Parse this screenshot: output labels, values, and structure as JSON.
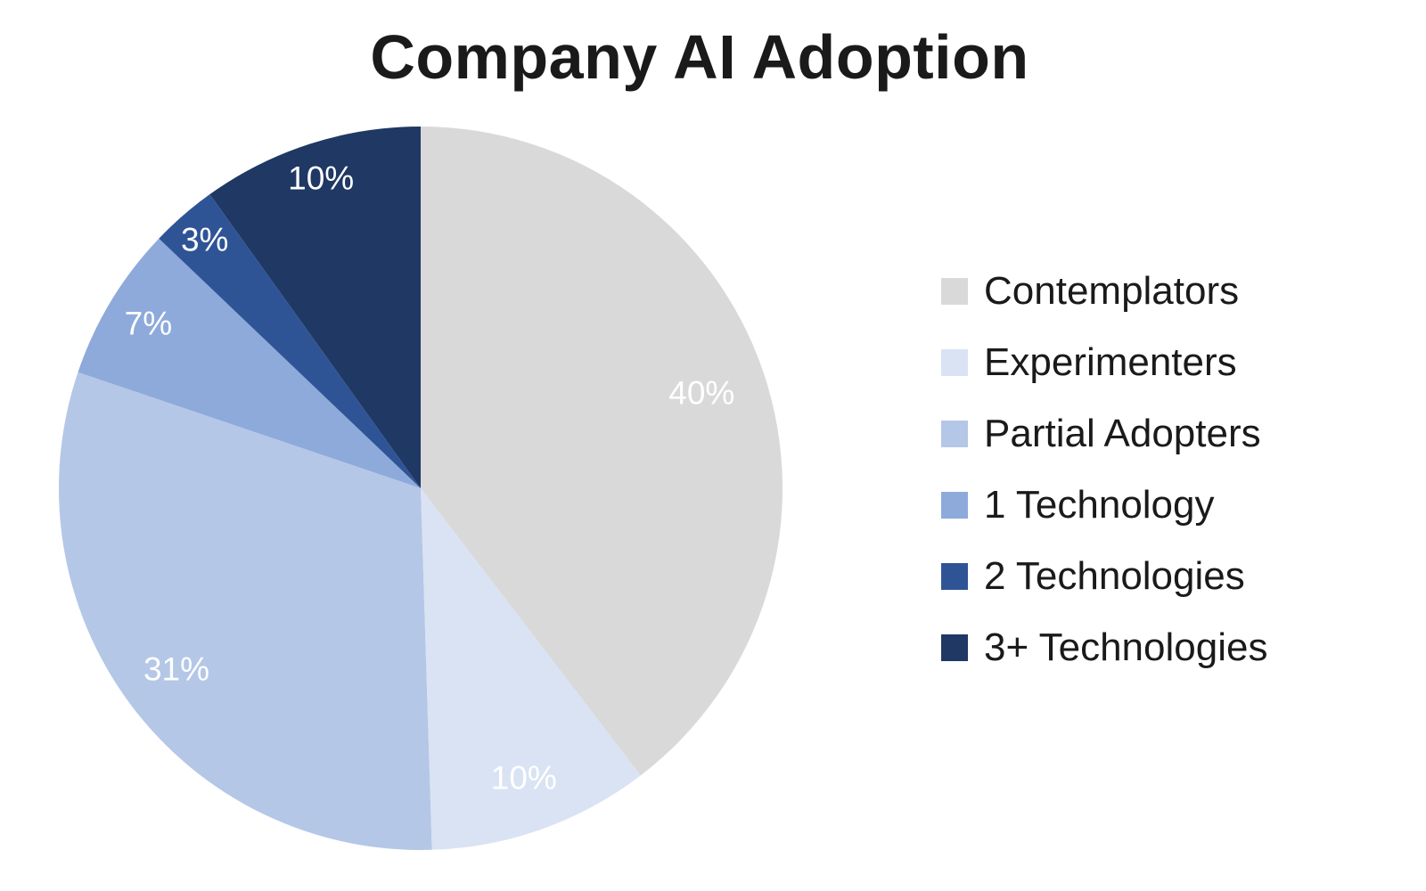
{
  "page": {
    "background": "#ffffff",
    "text_color": "#1a1a1a"
  },
  "chart_data": {
    "type": "pie",
    "title": "Company AI Adoption",
    "categories": [
      "Contemplators",
      "Experimenters",
      "Partial Adopters",
      "1 Technology",
      "2 Technologies",
      "3+ Technologies"
    ],
    "values": [
      40,
      10,
      31,
      7,
      3,
      10
    ],
    "data_labels": [
      "40%",
      "10%",
      "31%",
      "7%",
      "3%",
      "10%"
    ],
    "colors": [
      "#d9d9d9",
      "#dae3f3",
      "#b4c7e7",
      "#8eaadb",
      "#2f5496",
      "#1f3864"
    ],
    "data_label_color": "#ffffff",
    "start_angle": 0,
    "direction": "clockwise",
    "legend_position": "right",
    "legend_entries": [
      "Contemplators",
      "Experimenters",
      "Partial Adopters",
      "1 Technology",
      "2 Technologies",
      "3+ Technologies"
    ]
  }
}
